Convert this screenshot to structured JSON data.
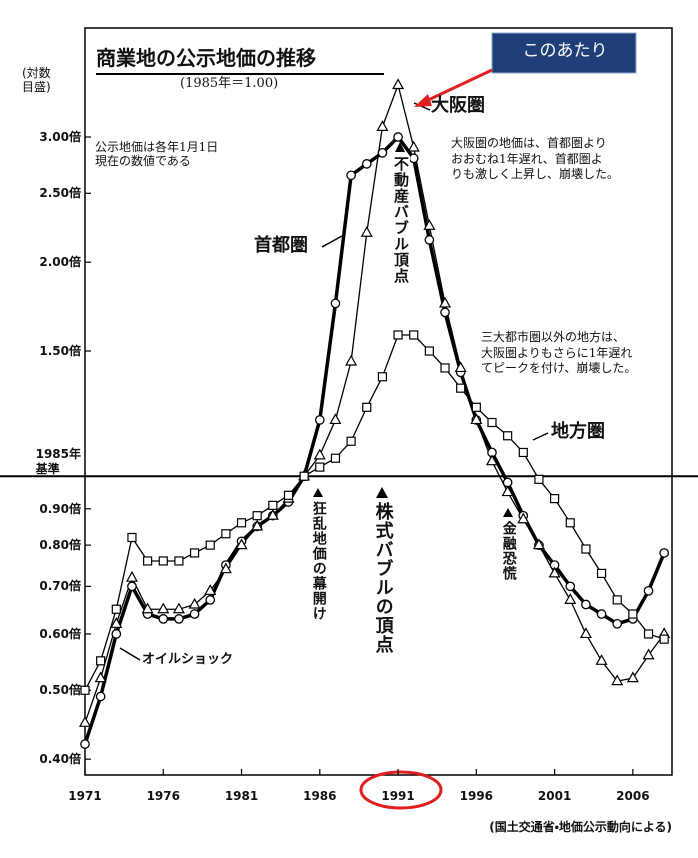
{
  "chart_data": {
    "type": "line",
    "title": "商業地の公示地価の推移",
    "subtitle": "(1985年＝1.00)",
    "y_axis_label": "(対数\n目盛)",
    "log_scale": true,
    "hline": 1.0,
    "x": [
      1971,
      1972,
      1973,
      1974,
      1975,
      1976,
      1977,
      1978,
      1979,
      1980,
      1981,
      1982,
      1983,
      1984,
      1985,
      1986,
      1987,
      1988,
      1989,
      1990,
      1991,
      1992,
      1993,
      1994,
      1995,
      1996,
      1997,
      1998,
      1999,
      2000,
      2001,
      2002,
      2003,
      2004,
      2005,
      2006,
      2007,
      2008
    ],
    "xlim": [
      1971,
      2008.5
    ],
    "xticks": [
      1971,
      1976,
      1981,
      1986,
      1991,
      1996,
      2001,
      2006
    ],
    "ylim": [
      0.38,
      4.27
    ],
    "yticks": [
      {
        "value": 0.4,
        "label": "0.40倍"
      },
      {
        "value": 0.5,
        "label": "0.50倍"
      },
      {
        "value": 0.6,
        "label": "0.60倍"
      },
      {
        "value": 0.7,
        "label": "0.70倍"
      },
      {
        "value": 0.8,
        "label": "0.80倍"
      },
      {
        "value": 0.9,
        "label": "0.90倍"
      },
      {
        "value": 1.0,
        "label": "1985年\n基準"
      },
      {
        "value": 1.5,
        "label": "1.50倍"
      },
      {
        "value": 2.0,
        "label": "2.00倍"
      },
      {
        "value": 2.5,
        "label": "2.50倍"
      },
      {
        "value": 3.0,
        "label": "3.00倍"
      }
    ],
    "series": [
      {
        "name": "首都圏",
        "color": "#000000",
        "marker": "circle",
        "linewidth": 3.5,
        "values": [
          0.42,
          0.49,
          0.6,
          0.7,
          0.64,
          0.63,
          0.63,
          0.64,
          0.67,
          0.75,
          0.81,
          0.85,
          0.88,
          0.92,
          1.0,
          1.2,
          1.75,
          2.65,
          2.75,
          2.85,
          3.0,
          2.8,
          2.15,
          1.7,
          1.4,
          1.2,
          1.08,
          0.98,
          0.88,
          0.8,
          0.75,
          0.7,
          0.66,
          0.64,
          0.62,
          0.63,
          0.69,
          0.78
        ]
      },
      {
        "name": "大阪圏",
        "color": "#000000",
        "marker": "triangle",
        "linewidth": 1.3,
        "values": [
          0.45,
          0.52,
          0.62,
          0.72,
          0.65,
          0.65,
          0.65,
          0.66,
          0.69,
          0.74,
          0.8,
          0.85,
          0.88,
          0.93,
          1.0,
          1.07,
          1.2,
          1.45,
          2.2,
          3.1,
          3.55,
          2.9,
          2.25,
          1.75,
          1.42,
          1.2,
          1.05,
          0.95,
          0.87,
          0.8,
          0.73,
          0.67,
          0.6,
          0.55,
          0.515,
          0.52,
          0.56,
          0.6
        ]
      },
      {
        "name": "地方圏",
        "color": "#000000",
        "marker": "square",
        "linewidth": 1.3,
        "values": [
          0.5,
          0.55,
          0.65,
          0.82,
          0.76,
          0.76,
          0.76,
          0.78,
          0.8,
          0.83,
          0.86,
          0.88,
          0.91,
          0.94,
          1.0,
          1.03,
          1.06,
          1.12,
          1.25,
          1.38,
          1.58,
          1.58,
          1.5,
          1.42,
          1.33,
          1.25,
          1.19,
          1.14,
          1.08,
          0.99,
          0.93,
          0.86,
          0.79,
          0.73,
          0.67,
          0.64,
          0.6,
          0.59
        ]
      }
    ],
    "annotations": {
      "note_dates": "公示地価は各年1月1日\n現在の数値である",
      "note_osaka": "大阪圏の地価は、首都圏より\nおおむね1年遅れ、首都圏よ\nりも激しく上昇し、崩壊した。",
      "note_regional": "三大都市圏以外の地方は、\n大阪圏よりもさらに1年遅れ\nてピークを付け、崩壊した。",
      "event_oil_shock": "オイルショック",
      "event_land_boom": "狂乱地価の幕開け",
      "event_stock_peak": "株式バブルの頂点",
      "event_realestate_peak": "不動産バブル頂点",
      "event_financial_crisis": "金融恐慌"
    },
    "callout": "このあたり",
    "source": "(国土交通省・地価公示動向による)"
  }
}
